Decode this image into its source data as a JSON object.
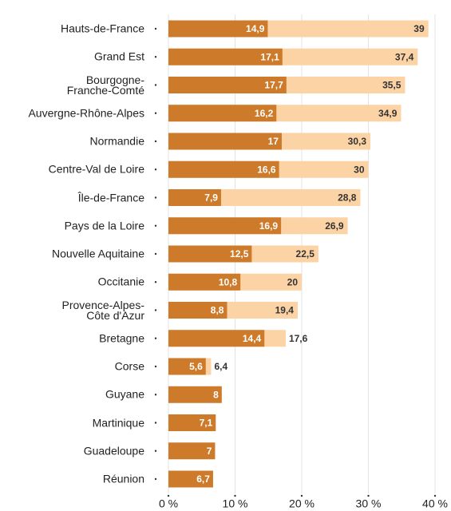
{
  "chart_data": {
    "type": "bar",
    "orientation": "horizontal",
    "categories": [
      "Hauts-de-France",
      "Grand Est",
      "Bourgogne-\nFranche-Comté",
      "Auvergne-Rhône-Alpes",
      "Normandie",
      "Centre-Val de Loire",
      "Île-de-France",
      "Pays de la Loire",
      "Nouvelle Aquitaine",
      "Occitanie",
      "Provence-Alpes-\nCôte d'Azur",
      "Bretagne",
      "Corse",
      "Guyane",
      "Martinique",
      "Guadeloupe",
      "Réunion"
    ],
    "series": [
      {
        "color": "#fcd3a5",
        "values": [
          39,
          37.4,
          35.5,
          34.9,
          30.3,
          30,
          28.8,
          26.9,
          22.5,
          20,
          19.4,
          17.6,
          6.4,
          null,
          null,
          null,
          null
        ],
        "value_labels": [
          "39",
          "37,4",
          "35,5",
          "34,9",
          "30,3",
          "30",
          "28,8",
          "26,9",
          "22,5",
          "20",
          "19,4",
          "17,6",
          "6,4",
          null,
          null,
          null,
          null
        ]
      },
      {
        "color": "#cd7b2b",
        "values": [
          14.9,
          17.1,
          17.7,
          16.2,
          17,
          16.6,
          7.9,
          16.9,
          12.5,
          10.8,
          8.8,
          14.4,
          5.6,
          8,
          7.1,
          7,
          6.7
        ],
        "value_labels": [
          "14,9",
          "17,1",
          "17,7",
          "16,2",
          "17",
          "16,6",
          "7,9",
          "16,9",
          "12,5",
          "10,8",
          "8,8",
          "14,4",
          "5,6",
          "8",
          "7,1",
          "7",
          "6,7"
        ]
      }
    ],
    "xlim": [
      0,
      40
    ],
    "xticks": [
      {
        "value": 0,
        "label": "0 %"
      },
      {
        "value": 10,
        "label": "10 %"
      },
      {
        "value": 20,
        "label": "20 %"
      },
      {
        "value": 30,
        "label": "30 %"
      },
      {
        "value": 40,
        "label": "40 %"
      }
    ],
    "grid": true
  }
}
